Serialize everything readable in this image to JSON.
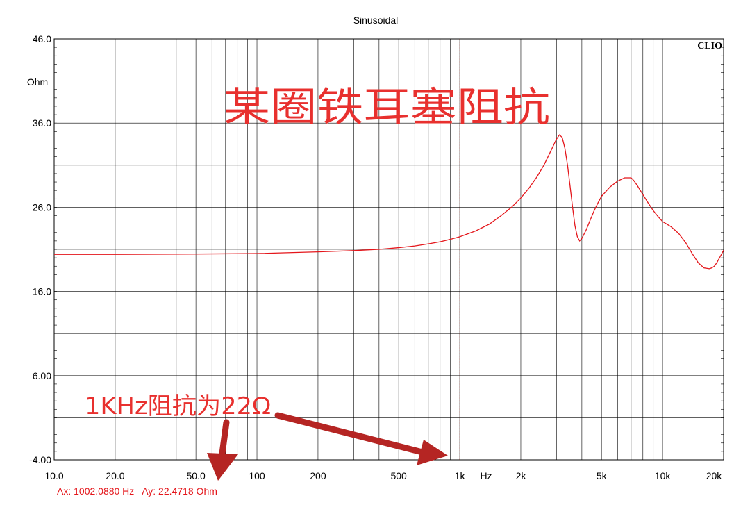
{
  "chart_data": {
    "type": "line",
    "title": "Sinusoidal",
    "watermark": "CLIO",
    "x_scale": "log",
    "xlim": [
      10,
      20000
    ],
    "ylim": [
      -4,
      46
    ],
    "x_unit_label": "Hz",
    "y_unit_label": "Ohm",
    "x_ticks": [
      {
        "value": 10,
        "label": "10.0"
      },
      {
        "value": 20,
        "label": "20.0"
      },
      {
        "value": 50,
        "label": "50.0"
      },
      {
        "value": 100,
        "label": "100"
      },
      {
        "value": 200,
        "label": "200"
      },
      {
        "value": 500,
        "label": "500"
      },
      {
        "value": 1000,
        "label": "1k"
      },
      {
        "value": 2000,
        "label": "2k"
      },
      {
        "value": 5000,
        "label": "5k"
      },
      {
        "value": 10000,
        "label": "10k"
      },
      {
        "value": 20000,
        "label": "20k"
      }
    ],
    "y_ticks": [
      {
        "value": 46,
        "label": "46.0"
      },
      {
        "value": 36,
        "label": "36.0"
      },
      {
        "value": 26,
        "label": "26.0"
      },
      {
        "value": 16,
        "label": "16.0"
      },
      {
        "value": 6,
        "label": "6.00"
      },
      {
        "value": -4,
        "label": "-4.00"
      }
    ],
    "grid": true,
    "series": [
      {
        "color": "#e4161b",
        "x": [
          10,
          20,
          50,
          100,
          200,
          300,
          400,
          500,
          600,
          700,
          800,
          900,
          1000,
          1200,
          1400,
          1600,
          1800,
          2000,
          2200,
          2400,
          2600,
          2800,
          3000,
          3100,
          3200,
          3300,
          3400,
          3500,
          3600,
          3700,
          3800,
          3900,
          4000,
          4200,
          4400,
          4600,
          4800,
          5000,
          5500,
          6000,
          6500,
          7000,
          7200,
          7500,
          8000,
          8500,
          9000,
          9500,
          10000,
          10500,
          11000,
          12000,
          13000,
          14000,
          15000,
          16000,
          17000,
          17500,
          18000,
          18500,
          19000,
          19500,
          20000
        ],
        "y": [
          20.4,
          20.4,
          20.45,
          20.5,
          20.7,
          20.85,
          21.0,
          21.2,
          21.4,
          21.65,
          21.9,
          22.2,
          22.5,
          23.2,
          24.0,
          25.0,
          26.0,
          27.1,
          28.3,
          29.6,
          31.0,
          32.6,
          34.1,
          34.6,
          34.3,
          33.0,
          31.0,
          28.5,
          26.0,
          23.8,
          22.5,
          22.0,
          22.3,
          23.3,
          24.5,
          25.6,
          26.5,
          27.3,
          28.4,
          29.1,
          29.5,
          29.5,
          29.2,
          28.6,
          27.5,
          26.5,
          25.6,
          24.9,
          24.3,
          24.0,
          23.7,
          22.9,
          21.8,
          20.5,
          19.4,
          18.8,
          18.7,
          18.8,
          19.0,
          19.4,
          19.9,
          20.4,
          20.9
        ]
      }
    ],
    "annotations": {
      "headline": "某圈铁耳塞阻抗",
      "note": "1KHz阻抗为22Ω",
      "cursor_x": 1002.088,
      "cursor_readout": "Ax: 1002.0880 Hz   Ay: 22.4718 Ohm"
    },
    "colors": {
      "trace": "#e4161b",
      "annotation_text": "#e8302e",
      "arrow": "#b52523",
      "grid": "#000000"
    }
  }
}
